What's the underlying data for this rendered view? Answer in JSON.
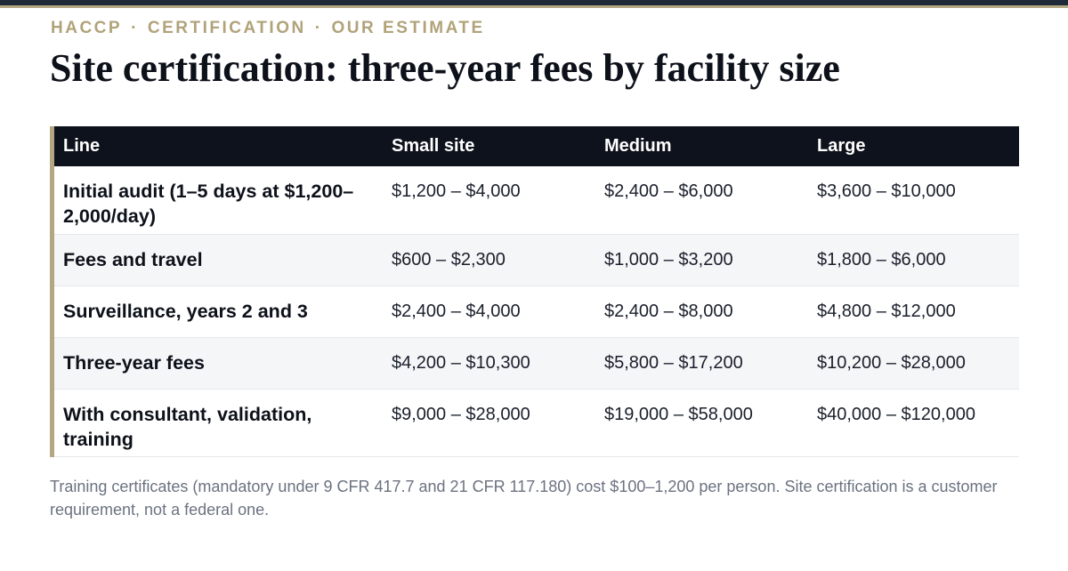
{
  "eyebrow": {
    "part1": "HACCP",
    "part2": "CERTIFICATION",
    "part3": "OUR ESTIMATE",
    "separator": "·"
  },
  "title": "Site certification: three-year fees by facility size",
  "table": {
    "headers": [
      "Line",
      "Small site",
      "Medium",
      "Large"
    ],
    "rows": [
      [
        "Initial audit (1–5 days at $1,200–2,000/day)",
        "$1,200 – $4,000",
        "$2,400 – $6,000",
        "$3,600 – $10,000"
      ],
      [
        "Fees and travel",
        "$600 – $2,300",
        "$1,000 – $3,200",
        "$1,800 – $6,000"
      ],
      [
        "Surveillance, years 2 and 3",
        "$2,400 – $4,000",
        "$2,400 – $8,000",
        "$4,800 – $12,000"
      ],
      [
        "Three-year fees",
        "$4,200 – $10,300",
        "$5,800 – $17,200",
        "$10,200 – $28,000"
      ],
      [
        "With consultant, validation, training",
        "$9,000 – $28,000",
        "$19,000 – $58,000",
        "$40,000 – $120,000"
      ]
    ]
  },
  "note": "Training certificates (mandatory under 9 CFR 417.7 and 21 CFR 117.180) cost $100–1,200 per person. Site certification is a customer requirement, not a federal one.",
  "colors": {
    "accent": "#b4a681",
    "header_bg": "#0d121c",
    "alt_row": "#f5f6f8",
    "note_text": "#6b7280"
  }
}
